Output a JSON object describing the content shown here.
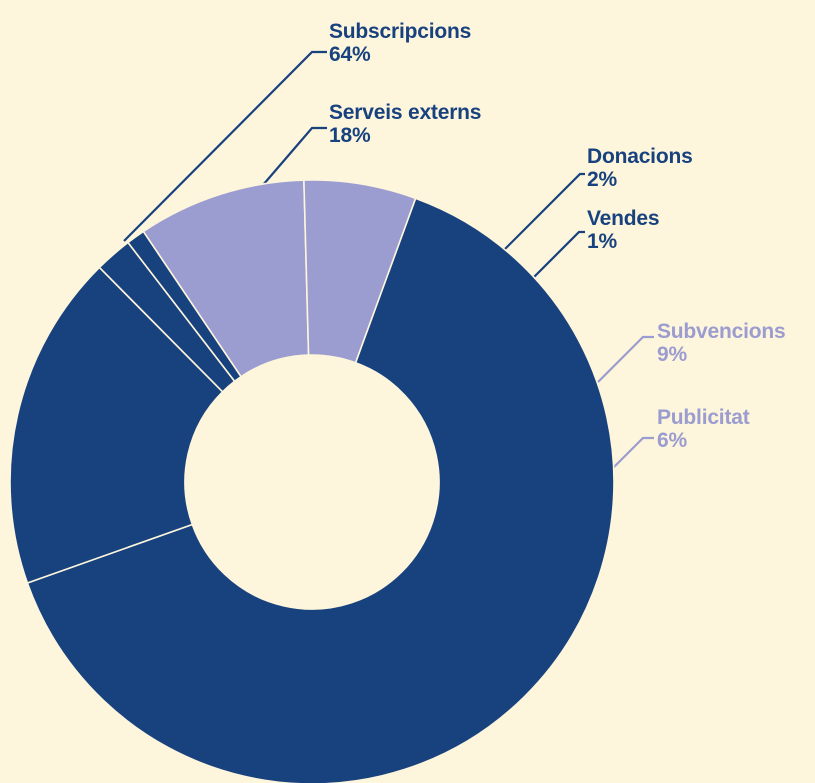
{
  "colors": {
    "background": "#fdf5dc",
    "dark": "#18427e",
    "light": "#9b9ccf",
    "separator": "#fdf5dc"
  },
  "chart_data": {
    "type": "pie",
    "donut": true,
    "legend": "callout-labels",
    "slices": [
      {
        "label": "Subscripcions",
        "value": 64,
        "display": "64%",
        "color": "#18427e"
      },
      {
        "label": "Serveis externs",
        "value": 18,
        "display": "18%",
        "color": "#18427e"
      },
      {
        "label": "Donacions",
        "value": 2,
        "display": "2%",
        "color": "#18427e"
      },
      {
        "label": "Vendes",
        "value": 1,
        "display": "1%",
        "color": "#18427e"
      },
      {
        "label": "Subvencions",
        "value": 9,
        "display": "9%",
        "color": "#9b9ccf"
      },
      {
        "label": "Publicitat",
        "value": 6,
        "display": "6%",
        "color": "#9b9ccf"
      }
    ]
  }
}
